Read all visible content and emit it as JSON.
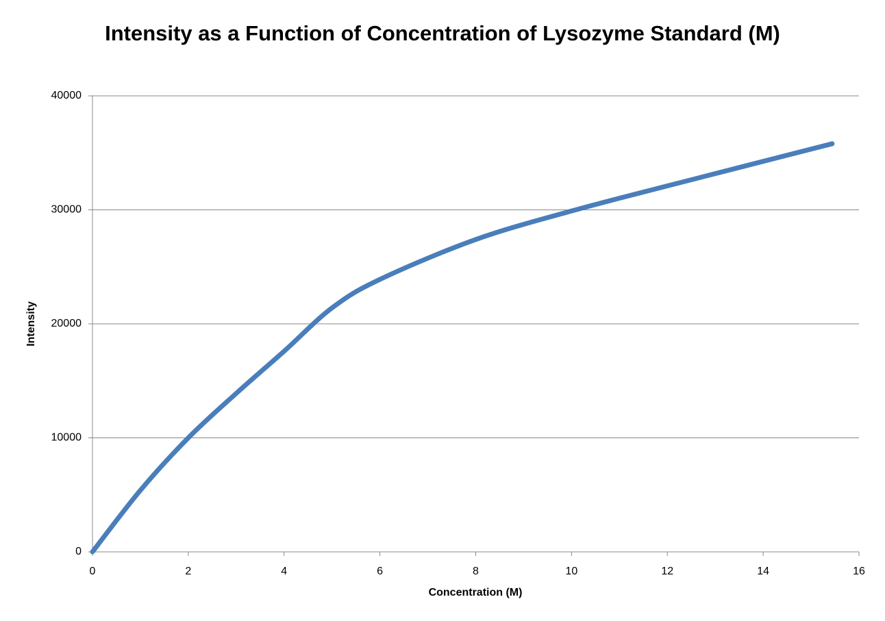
{
  "chart_data": {
    "type": "line",
    "title": "Intensity as a Function of Concentration of Lysozyme Standard (M)",
    "x_label": "Concentration (M)",
    "y_label": "Intensity",
    "x": [
      0,
      1,
      2,
      3,
      4,
      5,
      6,
      8,
      10,
      12,
      15.44
    ],
    "series": [
      {
        "name": "Intensity",
        "color": "#4a7ebb",
        "values": [
          0,
          5400,
          10000,
          13900,
          17600,
          21400,
          23900,
          27400,
          29900,
          32100,
          35800
        ]
      }
    ],
    "xlim": [
      0,
      16
    ],
    "xticks": [
      0,
      2,
      4,
      6,
      8,
      10,
      12,
      14,
      16
    ],
    "ylim": [
      0,
      40000
    ],
    "yticks": [
      0,
      10000,
      20000,
      30000,
      40000
    ],
    "grid": true
  }
}
